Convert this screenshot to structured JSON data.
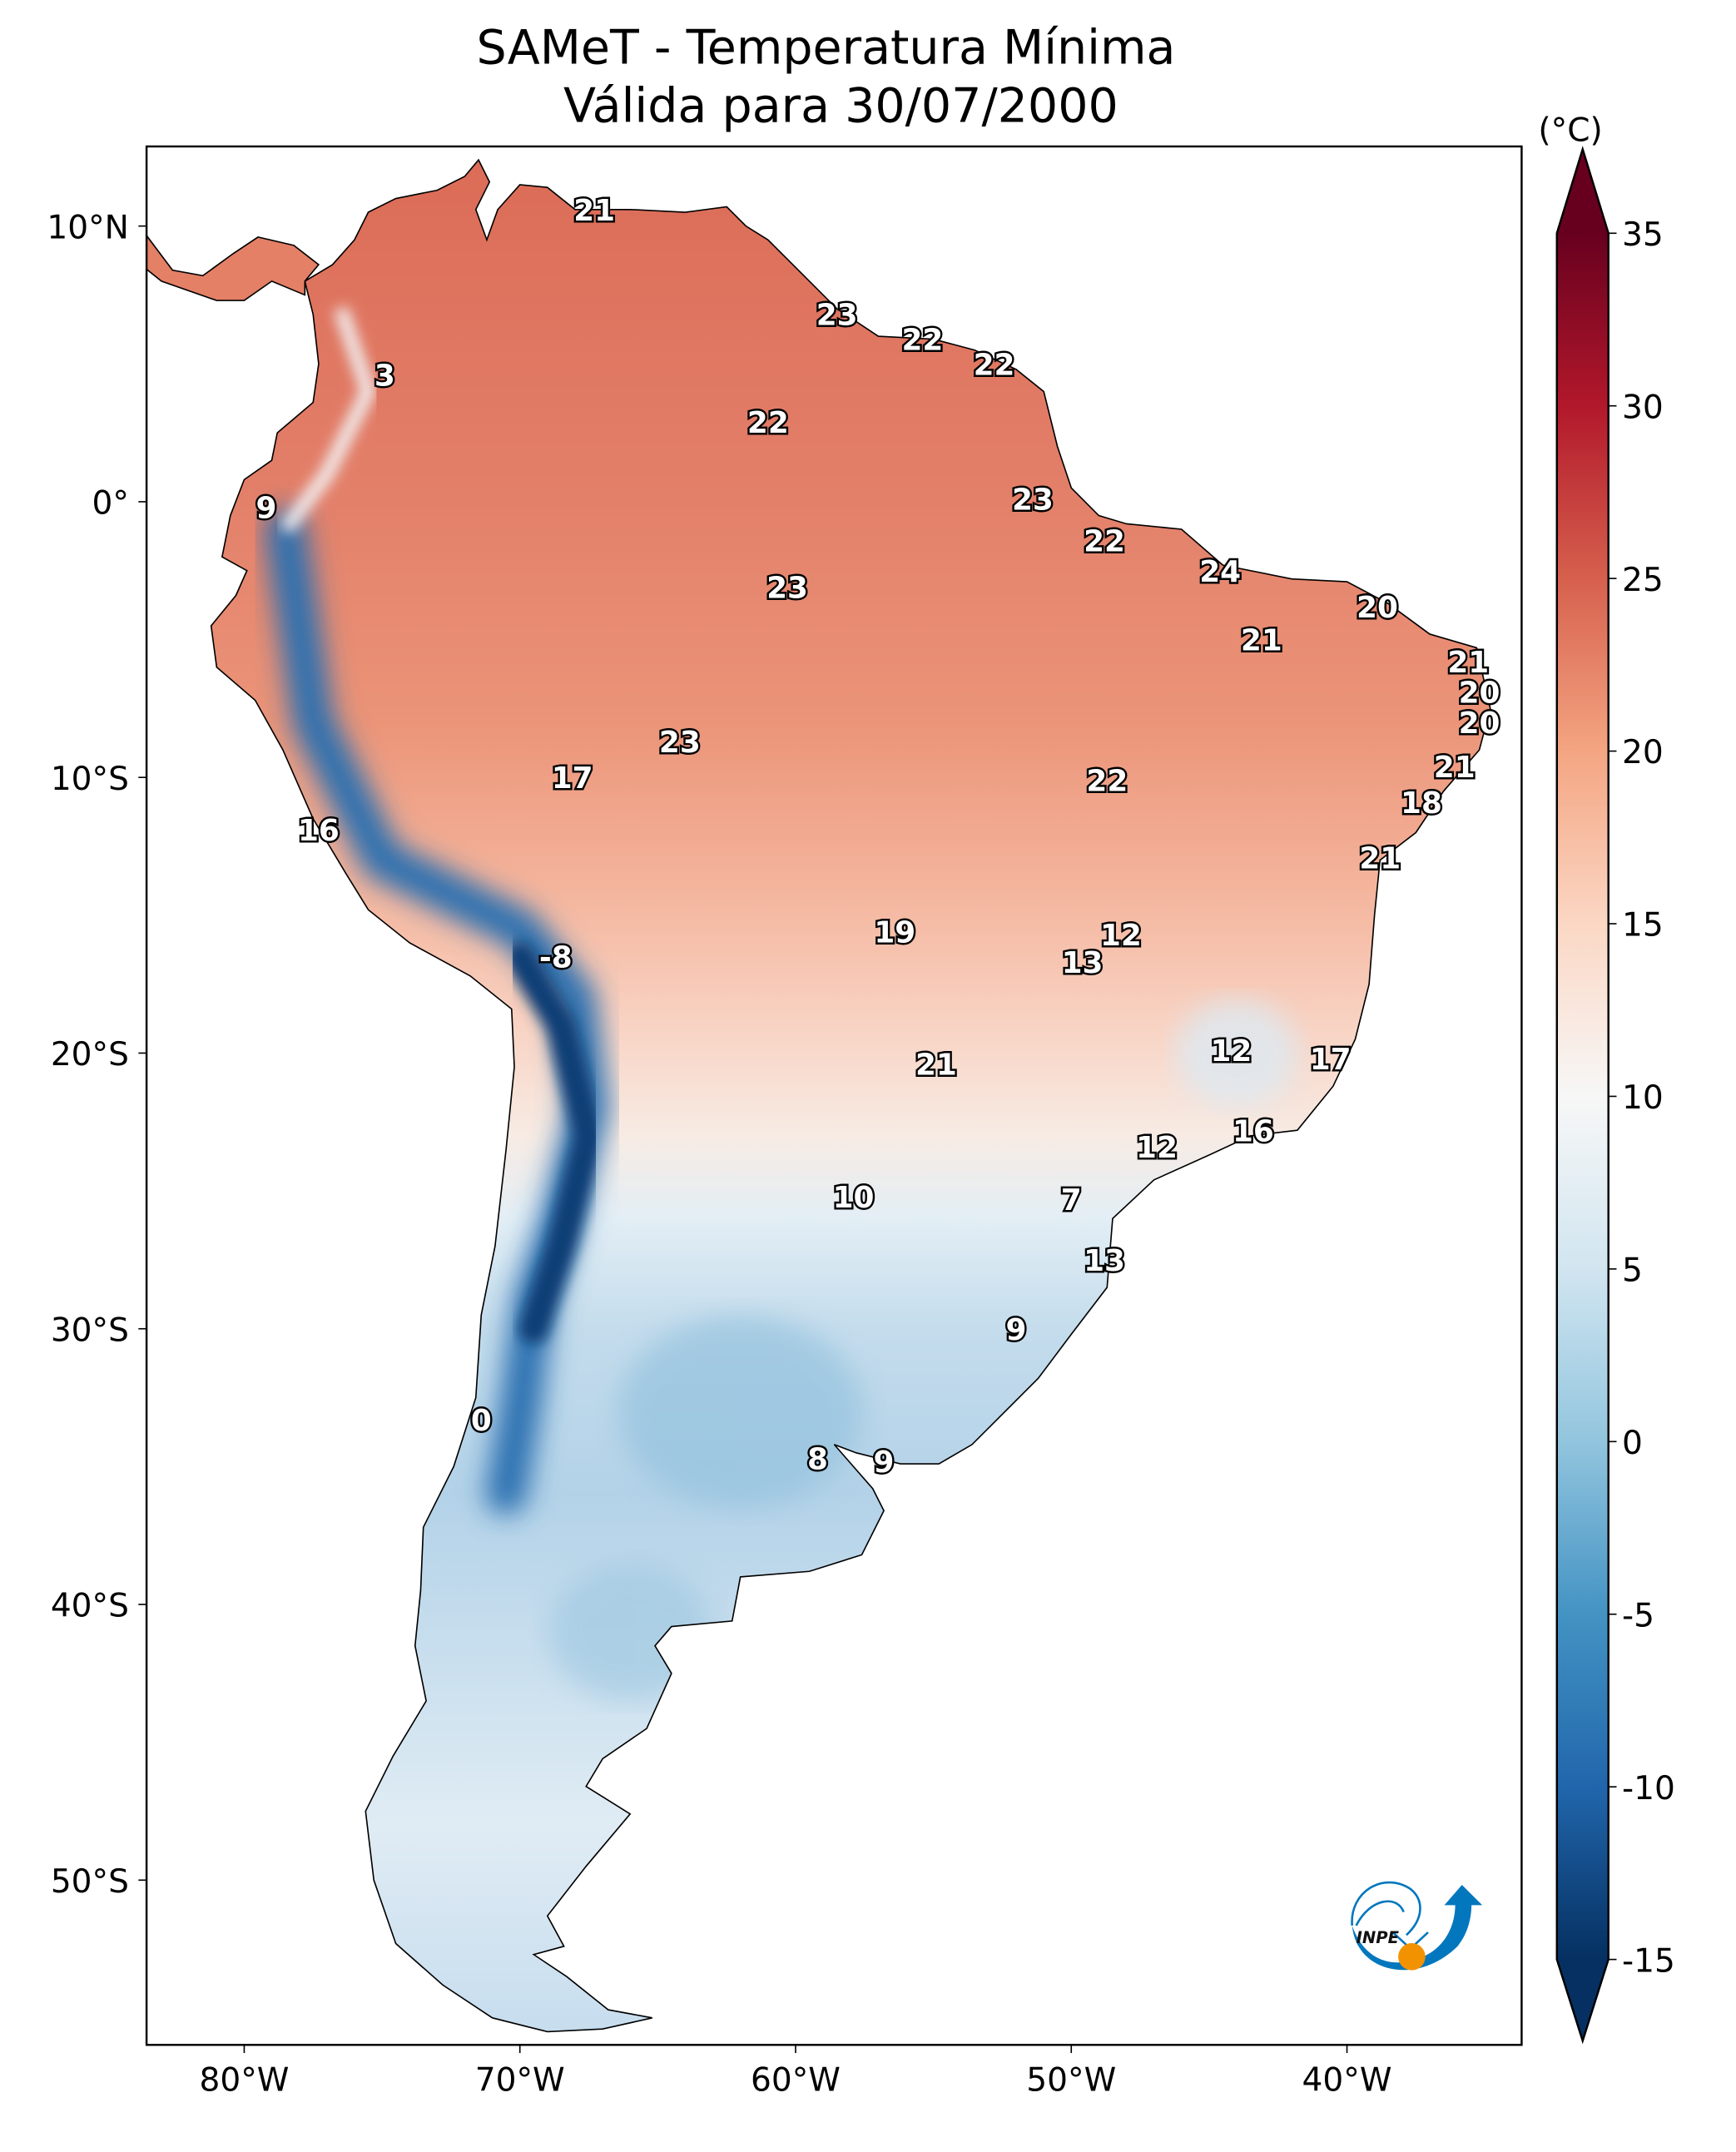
{
  "title": {
    "line1": "SAMeT - Temperatura Mínima",
    "line2": "Válida para 30/07/2000"
  },
  "axes": {
    "x_ticks": [
      {
        "lon": -80,
        "label": "80°W"
      },
      {
        "lon": -70,
        "label": "70°W"
      },
      {
        "lon": -60,
        "label": "60°W"
      },
      {
        "lon": -50,
        "label": "50°W"
      },
      {
        "lon": -40,
        "label": "40°W"
      }
    ],
    "y_ticks": [
      {
        "lat": 10,
        "label": "10°N"
      },
      {
        "lat": 0,
        "label": "0°"
      },
      {
        "lat": -10,
        "label": "10°S"
      },
      {
        "lat": -20,
        "label": "20°S"
      },
      {
        "lat": -30,
        "label": "30°S"
      },
      {
        "lat": -40,
        "label": "40°S"
      },
      {
        "lat": -50,
        "label": "50°S"
      }
    ],
    "lon_range": [
      -83.5,
      -33.5
    ],
    "lat_range": [
      -56,
      13
    ]
  },
  "colorbar": {
    "unit": "(°C)",
    "range": [
      -15,
      35
    ],
    "ticks": [
      "35",
      "30",
      "25",
      "20",
      "15",
      "10",
      "5",
      "0",
      "-5",
      "-10",
      "-15"
    ],
    "colors": [
      "#67001f",
      "#b2182b",
      "#d6604d",
      "#f4a582",
      "#fbd7c4",
      "#f7f7f7",
      "#d1e5f0",
      "#92c5de",
      "#4393c3",
      "#2166ac",
      "#053061"
    ]
  },
  "logo": {
    "text": "INPE",
    "blue": "#0277bd",
    "orange": "#f39200"
  },
  "chart_data": {
    "type": "map",
    "title": "SAMeT - Temperatura Mínima / Válida para 30/07/2000",
    "variable": "minimum temperature (°C)",
    "labels": [
      {
        "lon": -67.3,
        "lat": 10.6,
        "value": "21"
      },
      {
        "lon": -58.5,
        "lat": 6.8,
        "value": "23"
      },
      {
        "lon": -55.4,
        "lat": 5.9,
        "value": "22"
      },
      {
        "lon": -52.8,
        "lat": 5.0,
        "value": "22"
      },
      {
        "lon": -74.9,
        "lat": 4.6,
        "value": "3"
      },
      {
        "lon": -61.0,
        "lat": 2.9,
        "value": "22"
      },
      {
        "lon": -79.2,
        "lat": -0.2,
        "value": "9"
      },
      {
        "lon": -51.4,
        "lat": 0.1,
        "value": "23"
      },
      {
        "lon": -48.8,
        "lat": -1.4,
        "value": "22"
      },
      {
        "lon": -44.6,
        "lat": -2.5,
        "value": "24"
      },
      {
        "lon": -60.3,
        "lat": -3.1,
        "value": "23"
      },
      {
        "lon": -38.9,
        "lat": -3.8,
        "value": "20"
      },
      {
        "lon": -43.1,
        "lat": -5.0,
        "value": "21"
      },
      {
        "lon": -35.6,
        "lat": -5.8,
        "value": "21"
      },
      {
        "lon": -35.2,
        "lat": -6.9,
        "value": "20"
      },
      {
        "lon": -35.2,
        "lat": -8.0,
        "value": "20"
      },
      {
        "lon": -64.2,
        "lat": -8.7,
        "value": "23"
      },
      {
        "lon": -36.1,
        "lat": -9.6,
        "value": "21"
      },
      {
        "lon": -68.1,
        "lat": -10.0,
        "value": "17"
      },
      {
        "lon": -48.7,
        "lat": -10.1,
        "value": "22"
      },
      {
        "lon": -37.3,
        "lat": -10.9,
        "value": "18"
      },
      {
        "lon": -77.3,
        "lat": -11.9,
        "value": "16"
      },
      {
        "lon": -38.8,
        "lat": -12.9,
        "value": "21"
      },
      {
        "lon": -56.4,
        "lat": -15.6,
        "value": "19"
      },
      {
        "lon": -48.2,
        "lat": -15.7,
        "value": "12"
      },
      {
        "lon": -49.6,
        "lat": -16.7,
        "value": "13"
      },
      {
        "lon": -68.7,
        "lat": -16.5,
        "value": "-8"
      },
      {
        "lon": -44.2,
        "lat": -19.9,
        "value": "12"
      },
      {
        "lon": -40.6,
        "lat": -20.2,
        "value": "17"
      },
      {
        "lon": -54.9,
        "lat": -20.4,
        "value": "21"
      },
      {
        "lon": -43.4,
        "lat": -22.8,
        "value": "16"
      },
      {
        "lon": -46.9,
        "lat": -23.4,
        "value": "12"
      },
      {
        "lon": -57.9,
        "lat": -25.2,
        "value": "10"
      },
      {
        "lon": -50.0,
        "lat": -25.3,
        "value": "7"
      },
      {
        "lon": -48.8,
        "lat": -27.5,
        "value": "13"
      },
      {
        "lon": -52.0,
        "lat": -30.0,
        "value": "9"
      },
      {
        "lon": -71.4,
        "lat": -33.3,
        "value": "0"
      },
      {
        "lon": -59.2,
        "lat": -34.7,
        "value": "8"
      },
      {
        "lon": -56.8,
        "lat": -34.8,
        "value": "9"
      }
    ]
  }
}
